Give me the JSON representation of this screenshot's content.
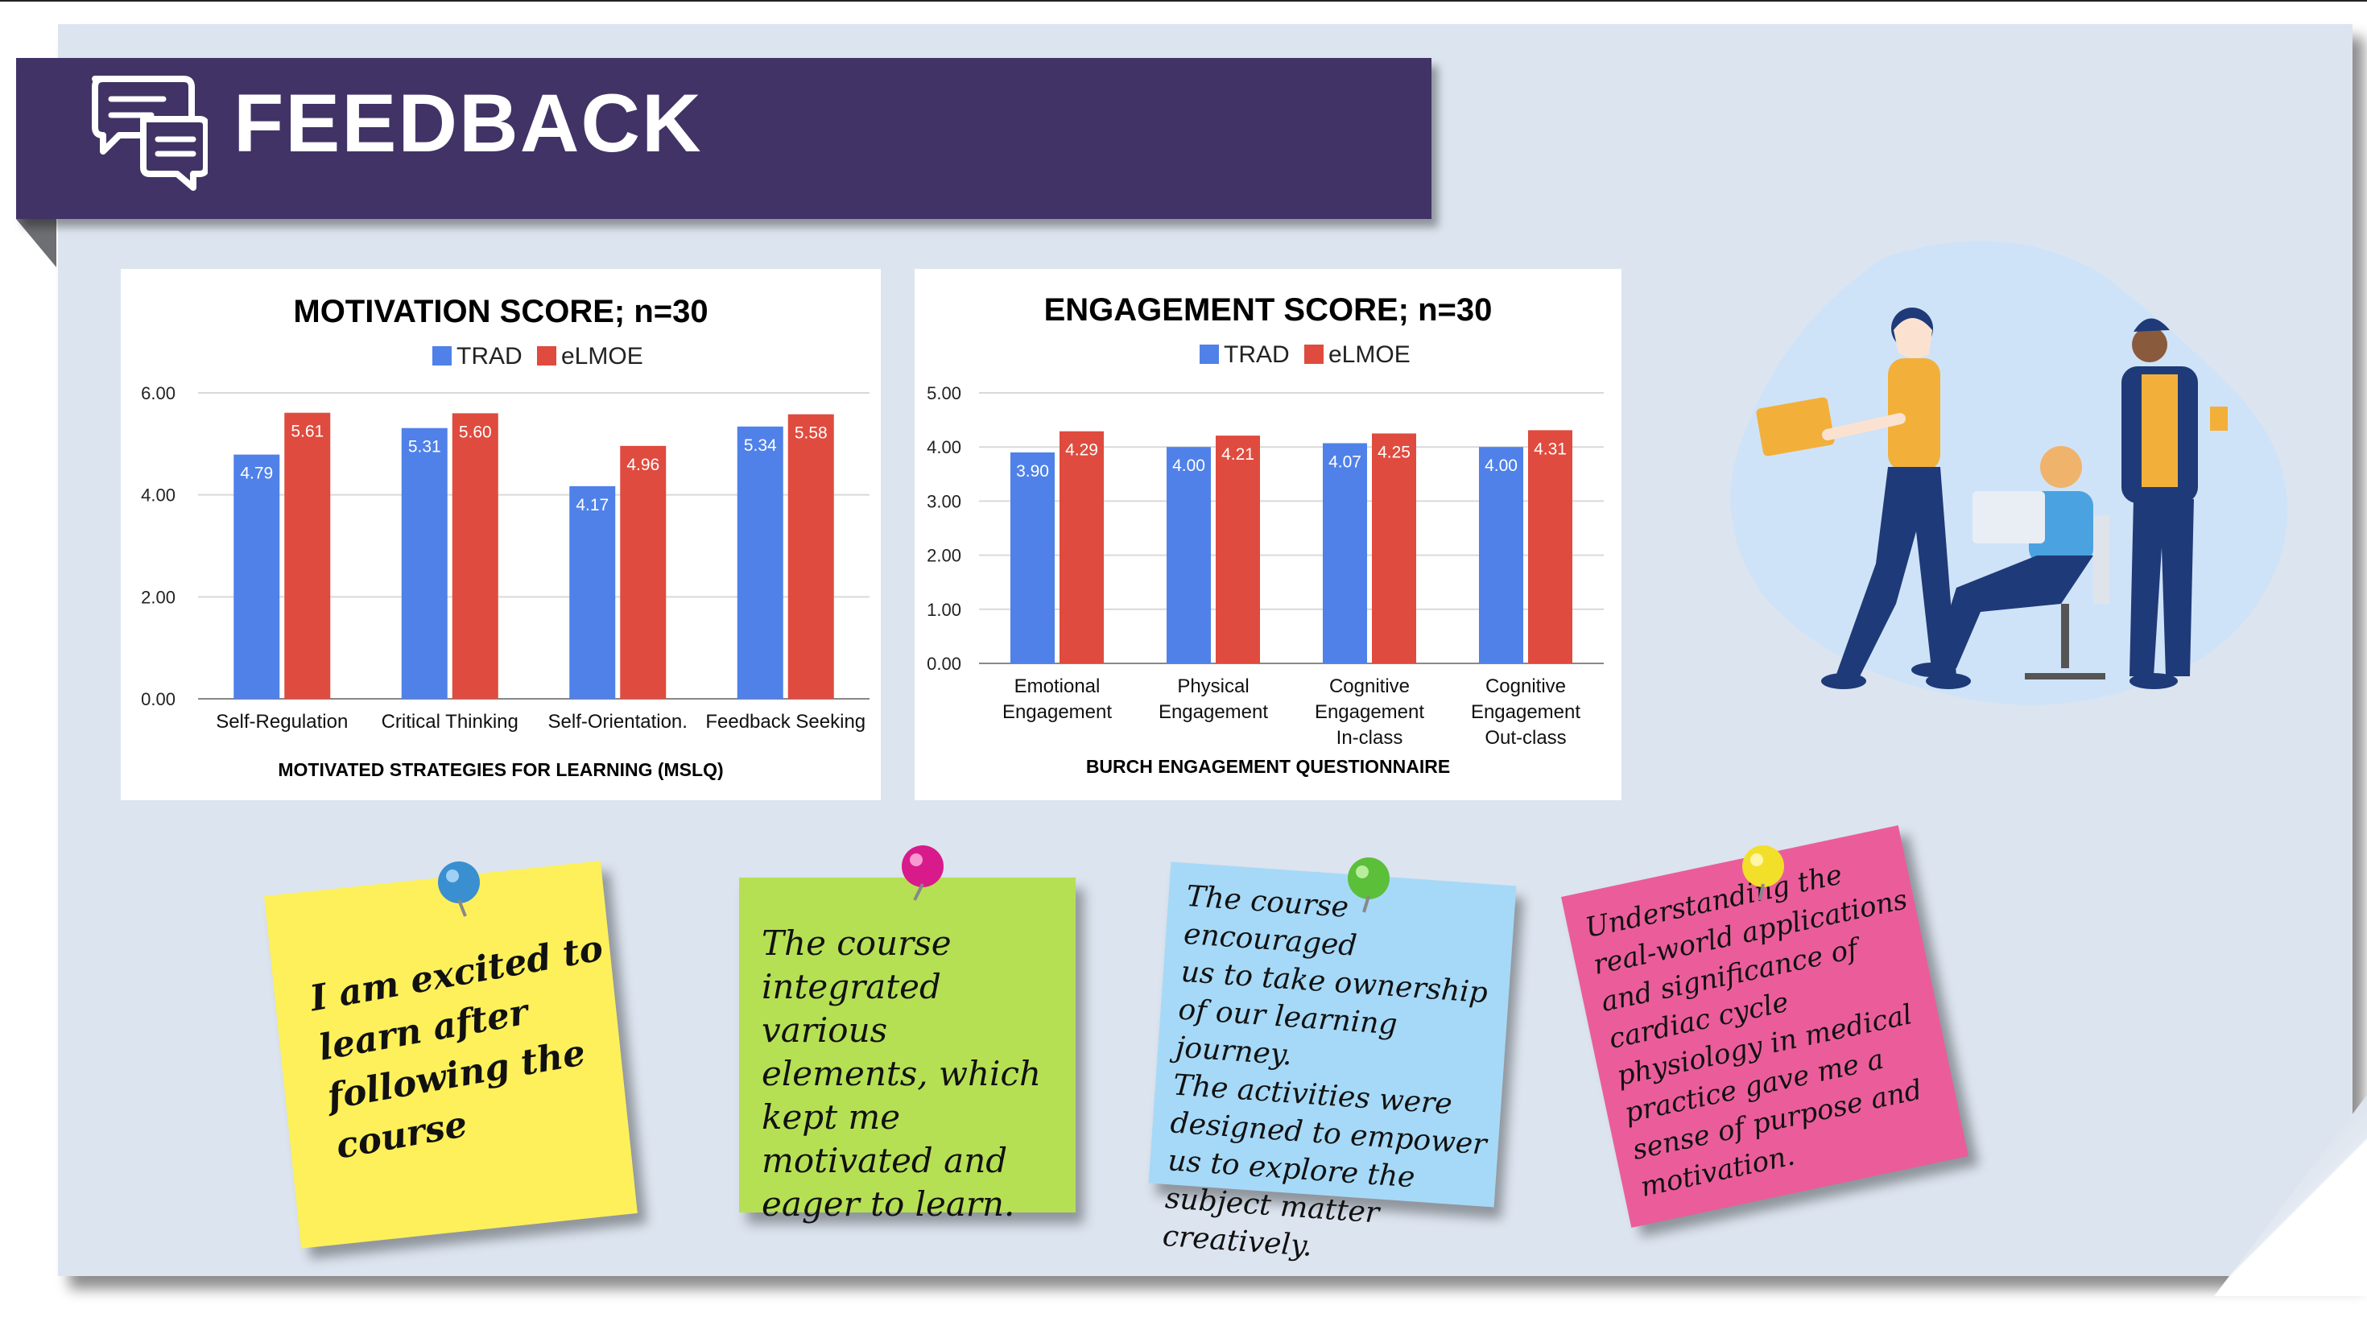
{
  "header": {
    "title": "FEEDBACK",
    "icon": "chat-bubbles-icon"
  },
  "colors": {
    "trad": "#4f81e8",
    "elmoe": "#df4b3e",
    "banner": "#413366"
  },
  "chart_data": [
    {
      "type": "bar",
      "title": "MOTIVATION SCORE; n=30",
      "xlabel": "MOTIVATED STRATEGIES FOR LEARNING (MSLQ)",
      "ylabel": "",
      "categories": [
        "Self-Regulation",
        "Critical Thinking",
        "Self-Orientation.",
        "Feedback Seeking"
      ],
      "series": [
        {
          "name": "TRAD",
          "values": [
            4.79,
            5.31,
            4.17,
            5.34
          ],
          "labels": [
            "4.79",
            "5.31",
            "4.17",
            "5.34"
          ]
        },
        {
          "name": "eLMOE",
          "values": [
            5.61,
            5.6,
            4.96,
            5.58
          ],
          "labels": [
            "5.61",
            "5.60",
            "4.96",
            "5.58"
          ]
        }
      ],
      "ylim": [
        0,
        6
      ],
      "yticks": [
        "0.00",
        "2.00",
        "4.00",
        "6.00"
      ],
      "grid": true,
      "legend": "top"
    },
    {
      "type": "bar",
      "title": "ENGAGEMENT SCORE; n=30",
      "xlabel": "BURCH ENGAGEMENT QUESTIONNAIRE",
      "ylabel": "",
      "categories": [
        "Emotional\nEngagement",
        "Physical\nEngagement",
        "Cognitive\nEngagement\nIn-class",
        "Cognitive\nEngagement\nOut-class"
      ],
      "series": [
        {
          "name": "TRAD",
          "values": [
            3.9,
            4.0,
            4.07,
            4.0
          ],
          "labels": [
            "3.90",
            "4.00",
            "4.07",
            "4.00"
          ]
        },
        {
          "name": "eLMOE",
          "values": [
            4.29,
            4.21,
            4.25,
            4.31
          ],
          "labels": [
            "4.29",
            "4.21",
            "4.25",
            "4.31"
          ]
        }
      ],
      "ylim": [
        0,
        5
      ],
      "yticks": [
        "0.00",
        "1.00",
        "2.00",
        "3.00",
        "4.00",
        "5.00"
      ],
      "grid": true,
      "legend": "top"
    }
  ],
  "notes": [
    {
      "text": "I am excited to\nlearn after\nfollowing the\ncourse",
      "color": "#fdf05a",
      "pin": "#3a8fd0"
    },
    {
      "text": "The course\nintegrated various\nelements, which\nkept me\nmotivated and\neager to learn.",
      "color": "#b6e054",
      "pin": "#d81a8a"
    },
    {
      "text": "The course encouraged\nus to take ownership\nof our learning journey.\nThe activities were\ndesigned to empower\nus to explore the\nsubject matter\ncreatively.",
      "color": "#a6d9f7",
      "pin": "#5bbf3a"
    },
    {
      "text": "Understanding the\nreal-world applications\nand significance of\ncardiac cycle\nphysiology in medical\npractice gave me a\nsense of purpose and\nmotivation.",
      "color": "#ea5d9a",
      "pin": "#f2df2a"
    }
  ]
}
